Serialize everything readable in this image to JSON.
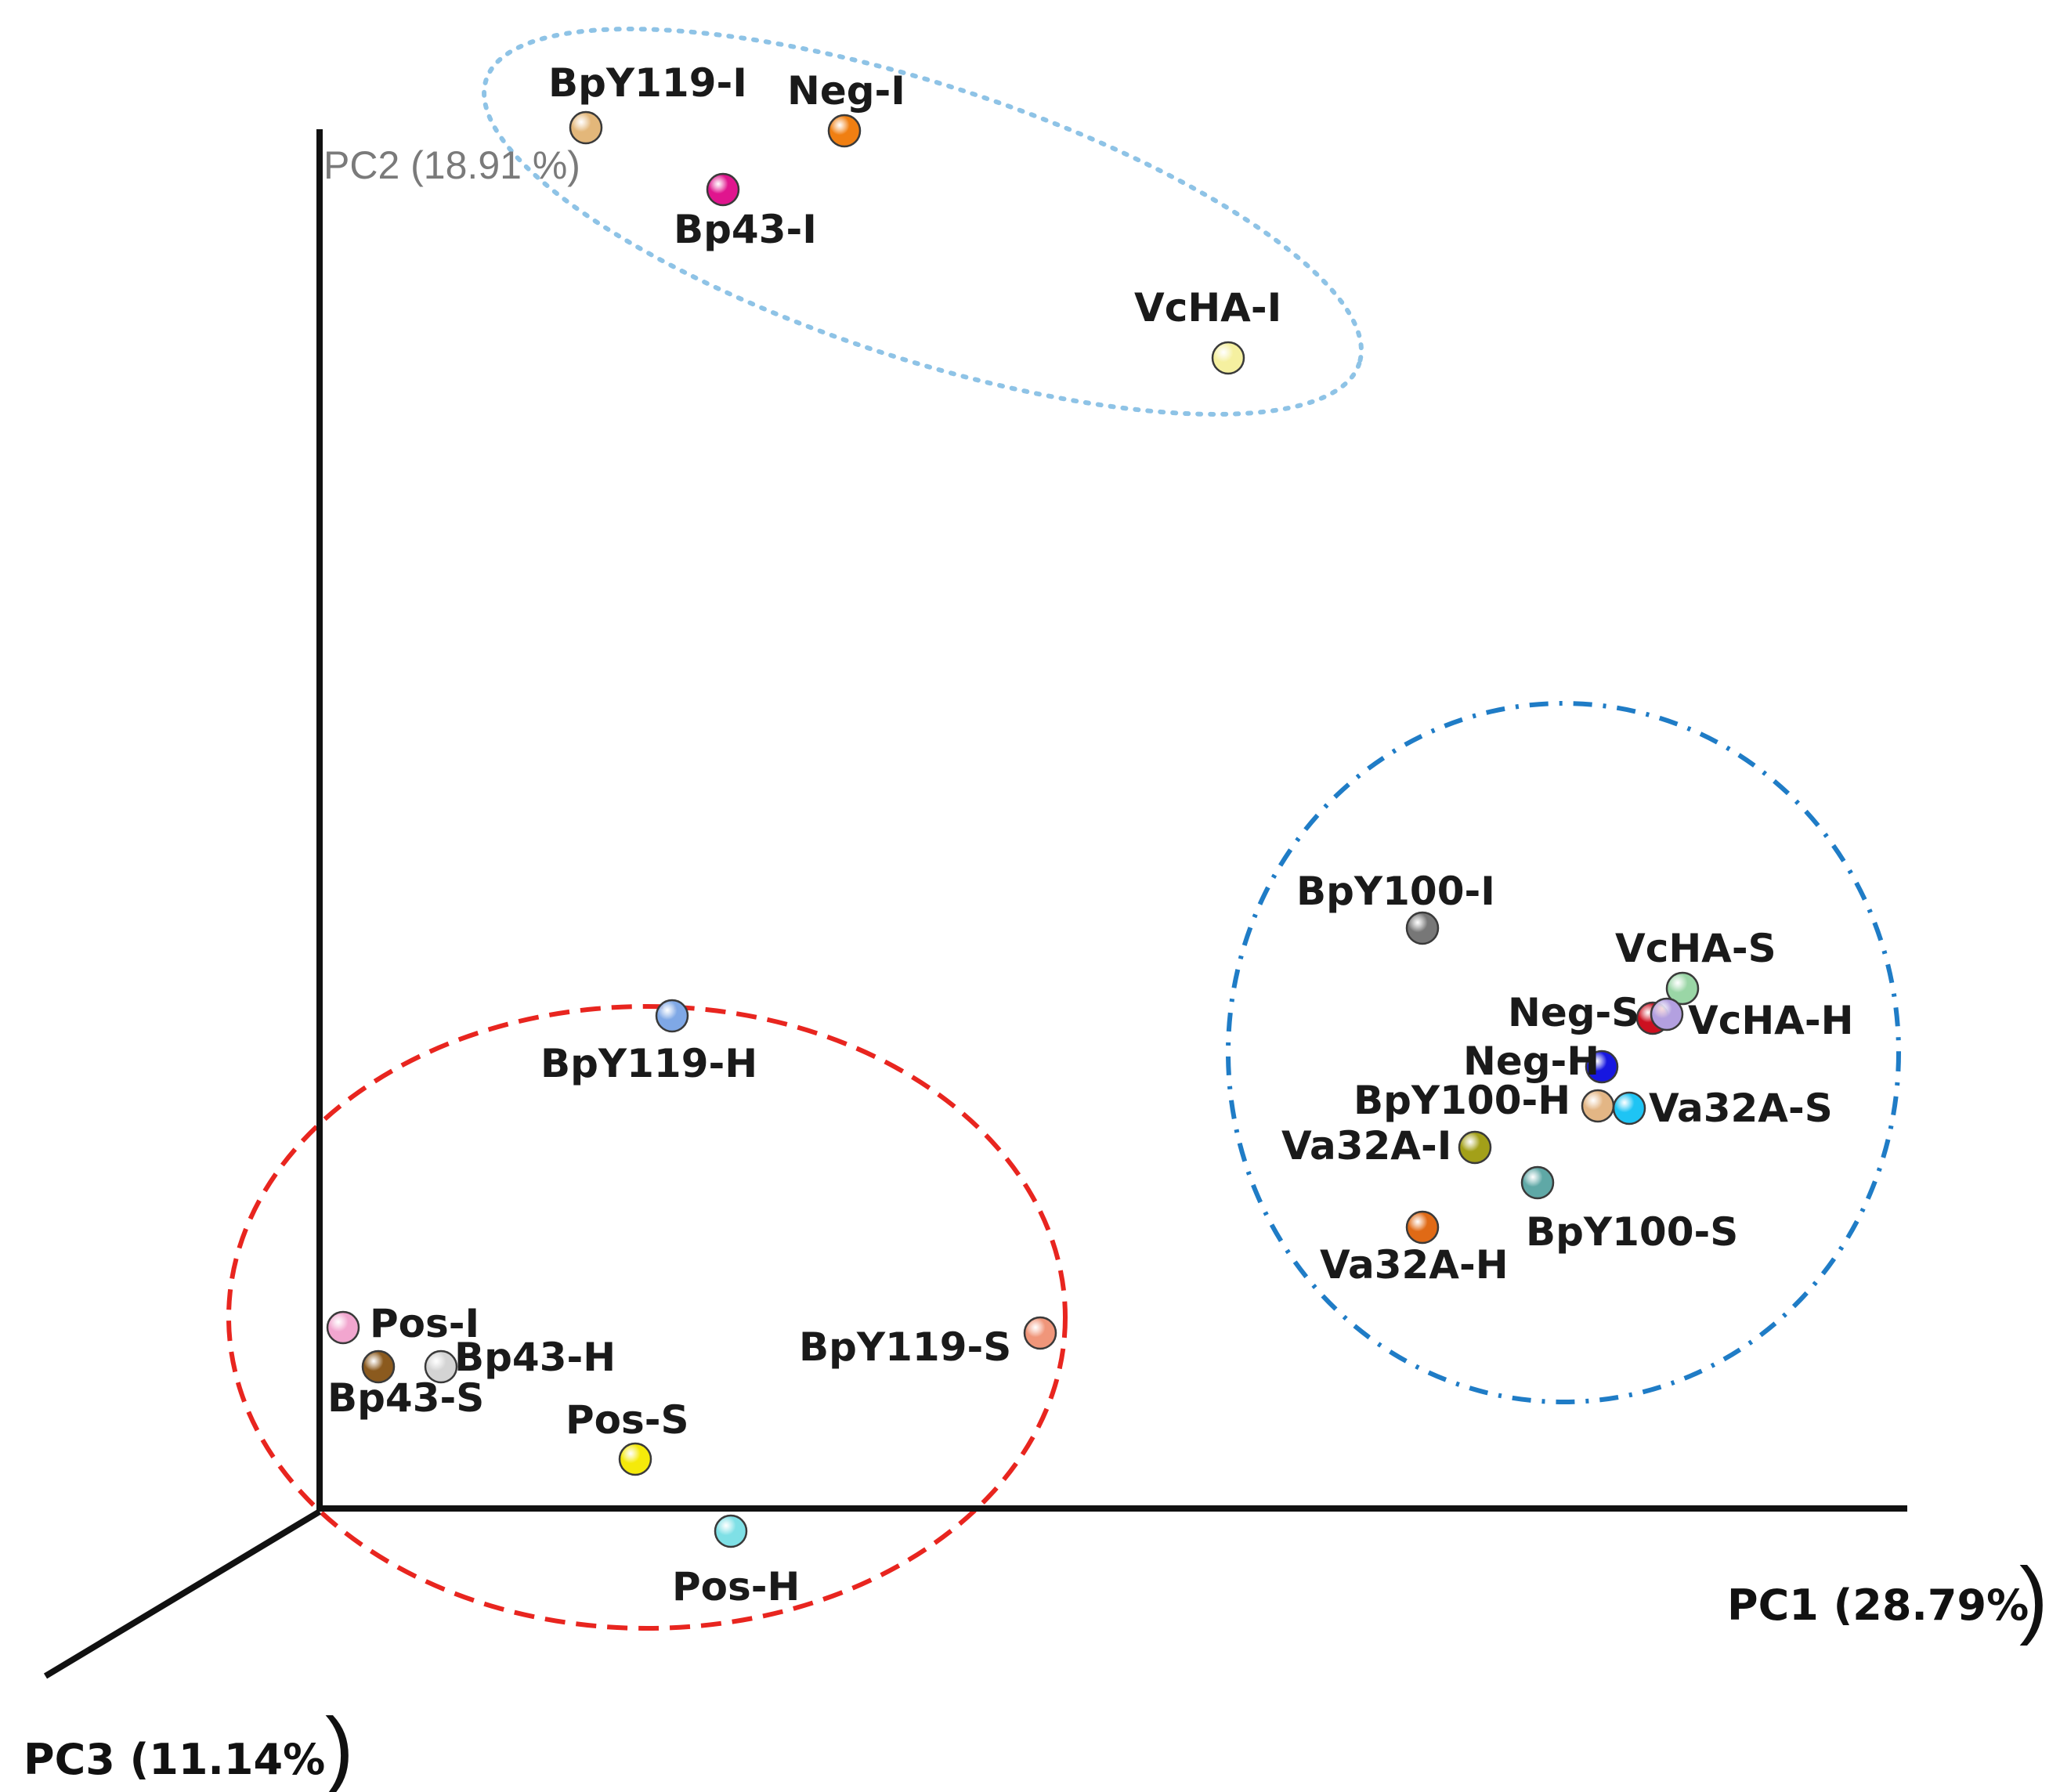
{
  "chart_data": {
    "type": "scatter",
    "title": "",
    "axes": {
      "x_label": "PC1 (28.79%",
      "y_label": "PC2 (18.91 %)",
      "z_label": "PC3 (11.14%",
      "closing_paren": ")"
    },
    "grid": false,
    "legend": "none",
    "clusters": [
      {
        "style": "dotted",
        "color": "#8ec3e6",
        "members": [
          "BpY119-I",
          "Neg-I",
          "Bp43-I",
          "VcHA-I"
        ]
      },
      {
        "style": "dashed",
        "color": "#e8251f",
        "members": [
          "BpY119-H",
          "Pos-I",
          "Bp43-S",
          "Bp43-H",
          "Pos-S",
          "Pos-H",
          "BpY119-S"
        ]
      },
      {
        "style": "dash-dot",
        "color": "#1f7cc6",
        "members": [
          "BpY100-I",
          "VcHA-S",
          "Neg-S",
          "VcHA-H",
          "Neg-H",
          "BpY100-H",
          "Va32A-S",
          "Va32A-I",
          "BpY100-S",
          "Va32A-H"
        ]
      }
    ],
    "points": [
      {
        "name": "BpY119-I",
        "color": "#e3b77a"
      },
      {
        "name": "Neg-I",
        "color": "#f07f12"
      },
      {
        "name": "Bp43-I",
        "color": "#e0158e"
      },
      {
        "name": "VcHA-I",
        "color": "#f5f0a0"
      },
      {
        "name": "BpY119-H",
        "color": "#7fa8e6"
      },
      {
        "name": "Pos-I",
        "color": "#f2a6cf"
      },
      {
        "name": "Bp43-S",
        "color": "#8b5a1e"
      },
      {
        "name": "Bp43-H",
        "color": "#d4d4d4"
      },
      {
        "name": "Pos-S",
        "color": "#f5ea0a"
      },
      {
        "name": "Pos-H",
        "color": "#7fe0e6"
      },
      {
        "name": "BpY119-S",
        "color": "#f0967a"
      },
      {
        "name": "BpY100-I",
        "color": "#777777"
      },
      {
        "name": "VcHA-S",
        "color": "#9ad6a6"
      },
      {
        "name": "Neg-S",
        "color": "#cc1020"
      },
      {
        "name": "VcHA-H",
        "color": "#b3a0e0"
      },
      {
        "name": "Neg-H",
        "color": "#1717e0"
      },
      {
        "name": "BpY100-H",
        "color": "#e3b685"
      },
      {
        "name": "Va32A-S",
        "color": "#1ec4f4"
      },
      {
        "name": "Va32A-I",
        "color": "#a3a019"
      },
      {
        "name": "BpY100-S",
        "color": "#5fa8a6"
      },
      {
        "name": "Va32A-H",
        "color": "#e06a16"
      }
    ]
  }
}
